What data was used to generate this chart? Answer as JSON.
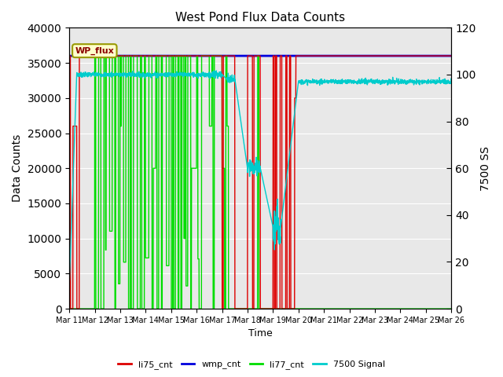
{
  "title": "West Pond Flux Data Counts",
  "xlabel": "Time",
  "ylabel_left": "Data Counts",
  "ylabel_right": "7500 SS",
  "ylim_left": [
    0,
    40000
  ],
  "ylim_right": [
    0,
    120
  ],
  "legend_label": "WP_flux",
  "wmp_color": "#0000dd",
  "li75_color": "#dd0000",
  "li77_color": "#00dd00",
  "sig_color": "#00cccc",
  "bg_color": "#e8e8e8",
  "xtick_labels": [
    "Mar 11",
    "Mar 12",
    "Mar 13",
    "Mar 14",
    "Mar 15",
    "Mar 16",
    "Mar 17",
    "Mar 18",
    "Mar 19",
    "Mar 20",
    "Mar 21",
    "Mar 22",
    "Mar 23",
    "Mar 24",
    "Mar 25",
    "Mar 26"
  ]
}
